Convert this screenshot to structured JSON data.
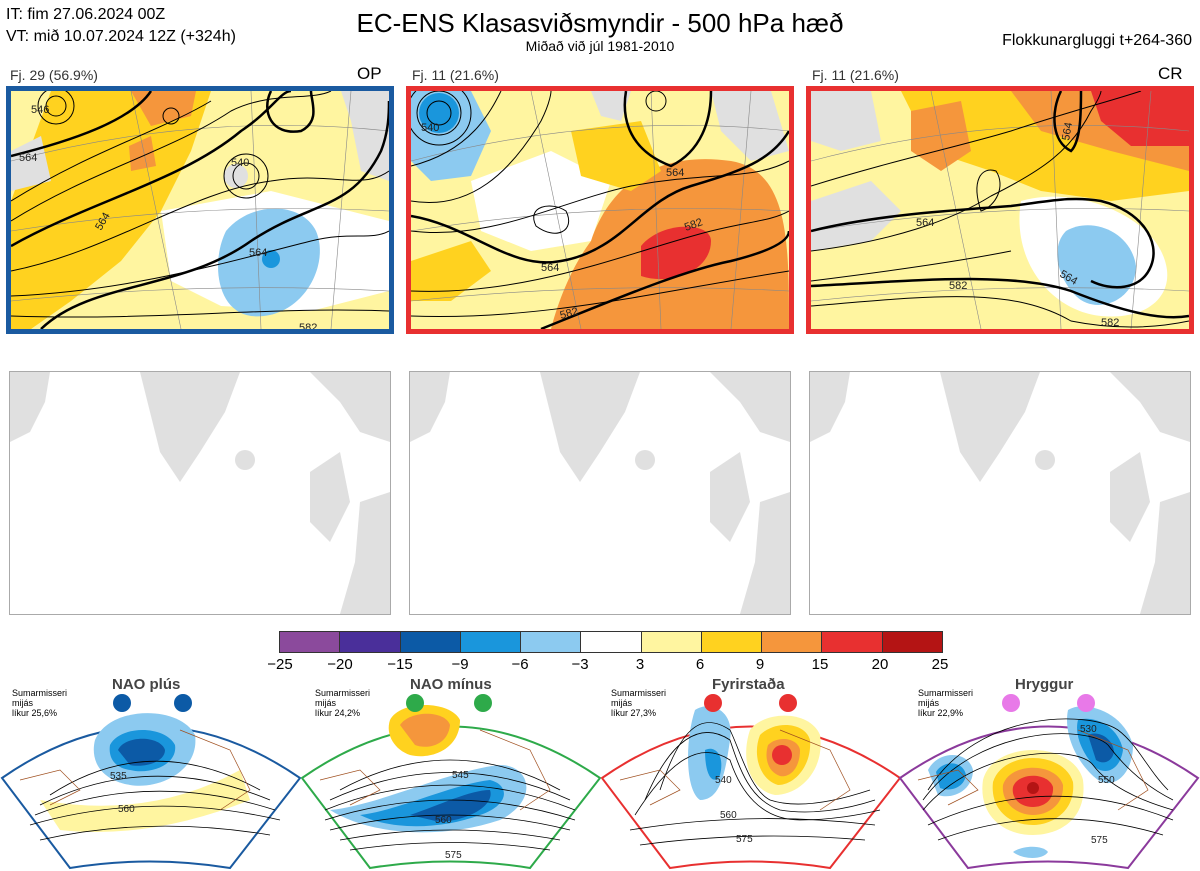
{
  "header": {
    "init_time": "IT: fim 27.06.2024 00Z",
    "valid_time": "VT: mið 10.07.2024 12Z  (+324h)",
    "title": "EC-ENS Klasasviðsmyndir - 500 hPa hæð",
    "subtitle": "Miðað við júl 1981-2010",
    "window": "Flokkunargluggi t+264-360"
  },
  "panels": [
    {
      "count": "Fj. 29 (56.9%)",
      "tag": "OP",
      "border": "#1a5aa0",
      "labels": [
        "546",
        "564",
        "564",
        "540",
        "564",
        "582"
      ]
    },
    {
      "count": "Fj. 11 (21.6%)",
      "tag": "",
      "border": "#e83030",
      "labels": [
        "540",
        "564",
        "582",
        "564",
        "582"
      ]
    },
    {
      "count": "Fj. 11 (21.6%)",
      "tag": "CR",
      "border": "#e83030",
      "labels": [
        "564",
        "564",
        "582",
        "582",
        "564"
      ]
    }
  ],
  "colorbar": {
    "ticks": [
      "−25",
      "−20",
      "−15",
      "−9",
      "−6",
      "−3",
      "3",
      "6",
      "9",
      "15",
      "20",
      "25"
    ],
    "colors": [
      "#8b4a9c",
      "#4a2f9a",
      "#0c5aa6",
      "#1a96dc",
      "#8ccaf0",
      "#ffffff",
      "#fff5a0",
      "#ffd21f",
      "#f5963c",
      "#e83030",
      "#b41414"
    ]
  },
  "climate": [
    {
      "name": "NAO plús",
      "season": "Sumarmisseri",
      "freq": "mijás",
      "prob": "líkur 25,6%",
      "color": "#0c5aa6",
      "labels": [
        "535",
        "560"
      ]
    },
    {
      "name": "NAO mínus",
      "season": "Sumarmisseri",
      "freq": "mijás",
      "prob": "líkur 24,2%",
      "color": "#2eaa4a",
      "labels": [
        "545",
        "560",
        "575"
      ]
    },
    {
      "name": "Fyrirstaða",
      "season": "Sumarmisseri",
      "freq": "mijás",
      "prob": "líkur 27,3%",
      "color": "#e83030",
      "labels": [
        "540",
        "560",
        "575"
      ]
    },
    {
      "name": "Hryggur",
      "season": "Sumarmisseri",
      "freq": "mijás",
      "prob": "líkur 22,9%",
      "color": "#e879e8",
      "labels": [
        "530",
        "550",
        "575"
      ]
    }
  ]
}
